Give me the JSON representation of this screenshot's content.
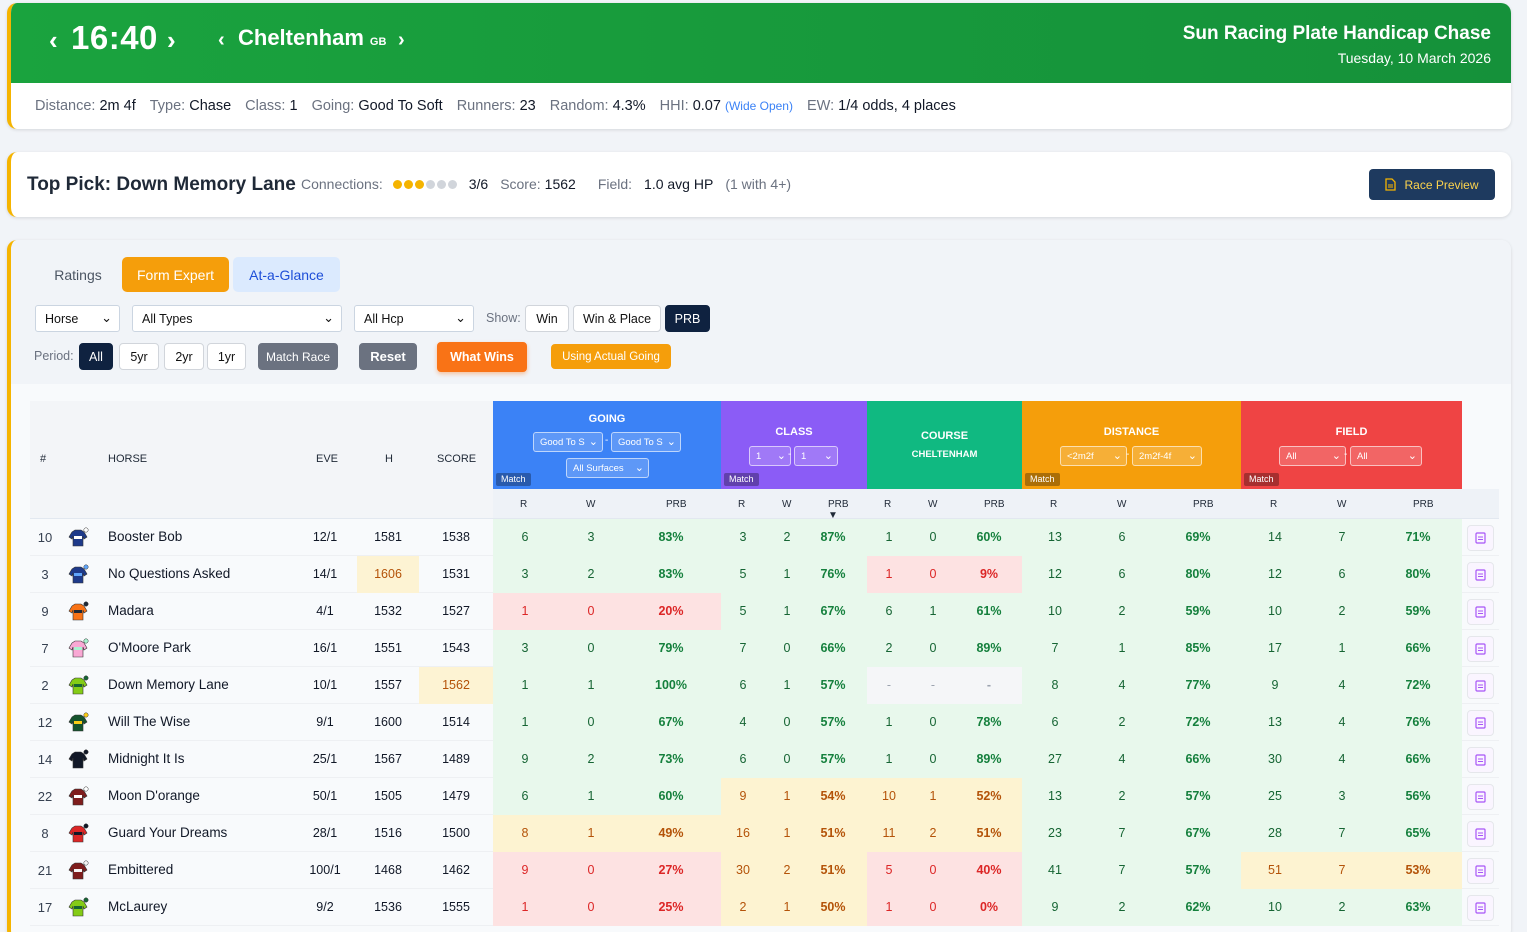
{
  "header": {
    "time": "16:40",
    "venue": "Cheltenham",
    "country": "GB",
    "race_name": "Sun Racing Plate Handicap Chase",
    "date": "Tuesday, 10 March 2026",
    "info": [
      {
        "label": "Distance:",
        "value": "2m 4f"
      },
      {
        "label": "Type:",
        "value": "Chase"
      },
      {
        "label": "Class:",
        "value": "1"
      },
      {
        "label": "Going:",
        "value": "Good To Soft"
      },
      {
        "label": "Runners:",
        "value": "23"
      },
      {
        "label": "Random:",
        "value": "4.3%"
      },
      {
        "label": "HHI:",
        "value": "0.07",
        "extra": "(Wide Open)"
      },
      {
        "label": "EW:",
        "value": "1/4 odds, 4 places"
      }
    ]
  },
  "top_pick": {
    "title": "Top Pick: Down Memory Lane",
    "connections_label": "Connections:",
    "connections_value": "3/6",
    "connections_filled": 3,
    "connections_total": 6,
    "score_label": "Score:",
    "score_value": "1562",
    "field_label": "Field:",
    "field_value": "1.0 avg HP",
    "field_extra": "(1 with 4+)",
    "preview_button": "Race Preview"
  },
  "tabs": [
    "Ratings",
    "Form Expert",
    "At-a-Glance"
  ],
  "filters": {
    "horse_select": "Horse",
    "type_select": "All Types",
    "hcp_select": "All Hcp",
    "show_label": "Show:",
    "show_options": [
      "Win",
      "Win & Place",
      "PRB"
    ],
    "period_label": "Period:",
    "period_options": [
      "All",
      "5yr",
      "2yr",
      "1yr"
    ],
    "match_race": "Match Race",
    "reset": "Reset",
    "what_wins": "What Wins",
    "using_actual_going": "Using Actual Going"
  },
  "table": {
    "left_headers": [
      "#",
      "HORSE",
      "EVE",
      "H",
      "SCORE"
    ],
    "groups": [
      {
        "title": "GOING",
        "color": "#3b82f6",
        "selects": [
          "Good To S",
          "Good To S",
          "All Surfaces"
        ],
        "match": "Match"
      },
      {
        "title": "CLASS",
        "color": "#8b5cf6",
        "selects": [
          "1",
          "1"
        ],
        "match": "Match"
      },
      {
        "title": "COURSE",
        "color": "#10b981",
        "subtitle": "CHELTENHAM"
      },
      {
        "title": "DISTANCE",
        "color": "#f59e0b",
        "selects": [
          "<2m2f",
          "2m2f-4f"
        ],
        "match": "Match"
      },
      {
        "title": "FIELD",
        "color": "#ef4444",
        "selects": [
          "All",
          "All"
        ],
        "match": "Match"
      }
    ],
    "sub_headers": {
      "r": "R",
      "w": "W",
      "prb": "PRB",
      "prb_sorted": "PRB ▼"
    },
    "rows": [
      {
        "num": "10",
        "horse": "Booster Bob",
        "eve": "12/1",
        "h": "1581",
        "score": "1538",
        "silk": [
          "#1e3a8a",
          "#ffffff"
        ],
        "hl": "",
        "stats": [
          [
            "6",
            "3",
            "83%",
            "g"
          ],
          [
            "3",
            "2",
            "87%",
            "g"
          ],
          [
            "1",
            "0",
            "60%",
            "g"
          ],
          [
            "13",
            "6",
            "69%",
            "g"
          ],
          [
            "14",
            "7",
            "71%",
            "g"
          ]
        ]
      },
      {
        "num": "3",
        "horse": "No Questions Asked",
        "eve": "14/1",
        "h": "1606",
        "score": "1531",
        "silk": [
          "#1e3a8a",
          "#60a5fa"
        ],
        "hl": "h",
        "stats": [
          [
            "3",
            "2",
            "83%",
            "g"
          ],
          [
            "5",
            "1",
            "76%",
            "g"
          ],
          [
            "1",
            "0",
            "9%",
            "r"
          ],
          [
            "12",
            "6",
            "80%",
            "g"
          ],
          [
            "12",
            "6",
            "80%",
            "g"
          ]
        ]
      },
      {
        "num": "9",
        "horse": "Madara",
        "eve": "4/1",
        "h": "1532",
        "score": "1527",
        "silk": [
          "#f97316",
          "#1f2937"
        ],
        "hl": "",
        "stats": [
          [
            "1",
            "0",
            "20%",
            "r"
          ],
          [
            "5",
            "1",
            "67%",
            "g"
          ],
          [
            "6",
            "1",
            "61%",
            "g"
          ],
          [
            "10",
            "2",
            "59%",
            "g"
          ],
          [
            "10",
            "2",
            "59%",
            "g"
          ]
        ]
      },
      {
        "num": "7",
        "horse": "O'Moore Park",
        "eve": "16/1",
        "h": "1551",
        "score": "1543",
        "silk": [
          "#f9a8d4",
          "#a7f3d0"
        ],
        "hl": "",
        "stats": [
          [
            "3",
            "0",
            "79%",
            "g"
          ],
          [
            "7",
            "0",
            "66%",
            "g"
          ],
          [
            "2",
            "0",
            "89%",
            "g"
          ],
          [
            "7",
            "1",
            "85%",
            "g"
          ],
          [
            "17",
            "1",
            "66%",
            "g"
          ]
        ]
      },
      {
        "num": "2",
        "horse": "Down Memory Lane",
        "eve": "10/1",
        "h": "1557",
        "score": "1562",
        "silk": [
          "#84cc16",
          "#166534"
        ],
        "hl": "s",
        "stats": [
          [
            "1",
            "1",
            "100%",
            "g"
          ],
          [
            "6",
            "1",
            "57%",
            "g"
          ],
          [
            "-",
            "-",
            "-",
            "n"
          ],
          [
            "8",
            "4",
            "77%",
            "g"
          ],
          [
            "9",
            "4",
            "72%",
            "g"
          ]
        ]
      },
      {
        "num": "12",
        "horse": "Will The Wise",
        "eve": "9/1",
        "h": "1600",
        "score": "1514",
        "silk": [
          "#14532d",
          "#facc15"
        ],
        "hl": "",
        "stats": [
          [
            "1",
            "0",
            "67%",
            "g"
          ],
          [
            "4",
            "0",
            "57%",
            "g"
          ],
          [
            "1",
            "0",
            "78%",
            "g"
          ],
          [
            "6",
            "2",
            "72%",
            "g"
          ],
          [
            "13",
            "4",
            "76%",
            "g"
          ]
        ]
      },
      {
        "num": "14",
        "horse": "Midnight It Is",
        "eve": "25/1",
        "h": "1567",
        "score": "1489",
        "silk": [
          "#111827",
          "#111827"
        ],
        "hl": "",
        "stats": [
          [
            "9",
            "2",
            "73%",
            "g"
          ],
          [
            "6",
            "0",
            "57%",
            "g"
          ],
          [
            "1",
            "0",
            "89%",
            "g"
          ],
          [
            "27",
            "4",
            "66%",
            "g"
          ],
          [
            "30",
            "4",
            "66%",
            "g"
          ]
        ]
      },
      {
        "num": "22",
        "horse": "Moon D'orange",
        "eve": "50/1",
        "h": "1505",
        "score": "1479",
        "silk": [
          "#7f1d1d",
          "#ffffff"
        ],
        "hl": "",
        "stats": [
          [
            "6",
            "1",
            "60%",
            "g"
          ],
          [
            "9",
            "1",
            "54%",
            "y"
          ],
          [
            "10",
            "1",
            "52%",
            "y"
          ],
          [
            "13",
            "2",
            "57%",
            "g"
          ],
          [
            "25",
            "3",
            "56%",
            "g"
          ]
        ]
      },
      {
        "num": "8",
        "horse": "Guard Your Dreams",
        "eve": "28/1",
        "h": "1516",
        "score": "1500",
        "silk": [
          "#dc2626",
          "#111827"
        ],
        "hl": "",
        "stats": [
          [
            "8",
            "1",
            "49%",
            "y"
          ],
          [
            "16",
            "1",
            "51%",
            "y"
          ],
          [
            "11",
            "2",
            "51%",
            "y"
          ],
          [
            "23",
            "7",
            "67%",
            "g"
          ],
          [
            "28",
            "7",
            "65%",
            "g"
          ]
        ]
      },
      {
        "num": "21",
        "horse": "Embittered",
        "eve": "100/1",
        "h": "1468",
        "score": "1462",
        "silk": [
          "#7f1d1d",
          "#f5f5f5"
        ],
        "hl": "",
        "stats": [
          [
            "9",
            "0",
            "27%",
            "r"
          ],
          [
            "30",
            "2",
            "51%",
            "y"
          ],
          [
            "5",
            "0",
            "40%",
            "r"
          ],
          [
            "41",
            "7",
            "57%",
            "g"
          ],
          [
            "51",
            "7",
            "53%",
            "y"
          ]
        ]
      },
      {
        "num": "17",
        "horse": "McLaurey",
        "eve": "9/2",
        "h": "1536",
        "score": "1555",
        "silk": [
          "#84cc16",
          "#166534"
        ],
        "hl": "",
        "stats": [
          [
            "1",
            "0",
            "25%",
            "r"
          ],
          [
            "2",
            "1",
            "50%",
            "y"
          ],
          [
            "1",
            "0",
            "0%",
            "r"
          ],
          [
            "9",
            "2",
            "62%",
            "g"
          ],
          [
            "10",
            "2",
            "63%",
            "g"
          ]
        ]
      }
    ]
  }
}
